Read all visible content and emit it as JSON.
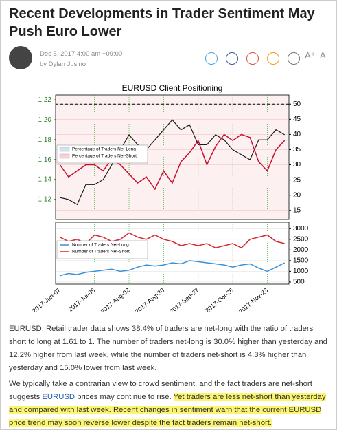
{
  "header": {
    "title": "Recent Developments in Trader Sentiment May Push Euro Lower",
    "date": "Dec 5, 2017 4:00 am +09:00",
    "author": "by Dylan Jusino",
    "font_larger": "A⁺",
    "font_smaller": "A⁻"
  },
  "chart_data": [
    {
      "type": "line",
      "title": "EURUSD Client Positioning",
      "categories": [
        "2017-Jun-07",
        null,
        null,
        null,
        "2017-Jul-05",
        null,
        null,
        null,
        "2017-Aug-02",
        null,
        null,
        null,
        "2017-Aug-30",
        null,
        null,
        null,
        "2017-Sep-27",
        null,
        null,
        null,
        "2017-Oct-26",
        null,
        null,
        null,
        "2017-Nov-23",
        null,
        null
      ],
      "series": [
        {
          "color": "#1a1a1a",
          "values": [
            1.122,
            1.12,
            1.115,
            1.135,
            1.135,
            1.14,
            1.155,
            1.17,
            1.185,
            1.175,
            1.17,
            1.18,
            1.19,
            1.2,
            1.19,
            1.195,
            1.175,
            1.175,
            1.185,
            1.18,
            1.17,
            1.165,
            1.16,
            1.18,
            1.18,
            1.19,
            1.185
          ]
        },
        {
          "color": "#c8102e",
          "axis": "y2",
          "values": [
            30,
            26,
            28,
            30,
            30,
            28,
            32,
            30,
            27,
            24,
            26,
            22,
            28,
            24,
            31,
            34,
            38,
            30,
            36,
            40,
            38,
            40,
            39,
            31,
            28,
            35,
            38
          ]
        }
      ],
      "legend": [
        {
          "name": "Percentage of Traders Net-Long",
          "color": "#cfe3f5"
        },
        {
          "name": "Percentage of Traders Net-Short",
          "color": "#f9d0d4"
        }
      ],
      "ylim": [
        1.1,
        1.225
      ],
      "yticks": [
        1.12,
        1.14,
        1.16,
        1.18,
        {
          "value": 1.2,
          "label": "1.20"
        },
        1.22
      ],
      "y2lim": [
        12,
        53
      ],
      "y2ticks": [
        15,
        20,
        25,
        30,
        35,
        40,
        45,
        50
      ],
      "reference_line": 50,
      "grid": true
    },
    {
      "type": "line",
      "categories": [
        "2017-Jun-07",
        null,
        null,
        null,
        "2017-Jul-05",
        null,
        null,
        null,
        "2017-Aug-02",
        null,
        null,
        null,
        "2017-Aug-30",
        null,
        null,
        null,
        "2017-Sep-27",
        null,
        null,
        null,
        "2017-Oct-26",
        null,
        null,
        null,
        "2017-Nov-23",
        null,
        null
      ],
      "series": [
        {
          "name": "Number of Traders Net-Long",
          "color": "#3a8fd9",
          "values": [
            800,
            900,
            850,
            950,
            1000,
            1050,
            1100,
            1000,
            1050,
            1200,
            1300,
            1250,
            1300,
            1400,
            1350,
            1500,
            1450,
            1400,
            1350,
            1300,
            1200,
            1300,
            1350,
            1150,
            1000,
            1200,
            1400
          ]
        },
        {
          "name": "Number of Traders Net-Short",
          "color": "#d9262e",
          "values": [
            2600,
            2400,
            2500,
            2300,
            2700,
            2600,
            2400,
            2500,
            2800,
            2600,
            2500,
            2700,
            2500,
            2400,
            2200,
            2300,
            2200,
            2300,
            2100,
            2200,
            2300,
            2100,
            2500,
            2600,
            2700,
            2400,
            2300
          ]
        }
      ],
      "ylim": [
        400,
        3300
      ],
      "yticks": [
        500,
        1000,
        1500,
        2000,
        2500,
        3000
      ],
      "grid": true
    }
  ],
  "body": {
    "paragraphs": [
      [
        "EURUSD: Retail trader data shows 38.4% of traders are net-long with the ratio of traders short to long at 1.61 to 1. The number of traders net-long is 30.0% higher than yesterday and 12.2% higher from last week, while the number of traders net-short is 4.3% higher than yesterday and 15.0% lower from last week."
      ],
      [
        "We typically take a contrarian view to crowd sentiment, and the fact traders are net-short suggests ",
        "EURUSD",
        " prices may continue to rise. ",
        "Yet traders are less net-short than yesterday and compared with last week. Recent changes in sentiment warn that the current EURUSD price trend may soon reverse lower despite the fact traders remain net-short."
      ]
    ]
  }
}
